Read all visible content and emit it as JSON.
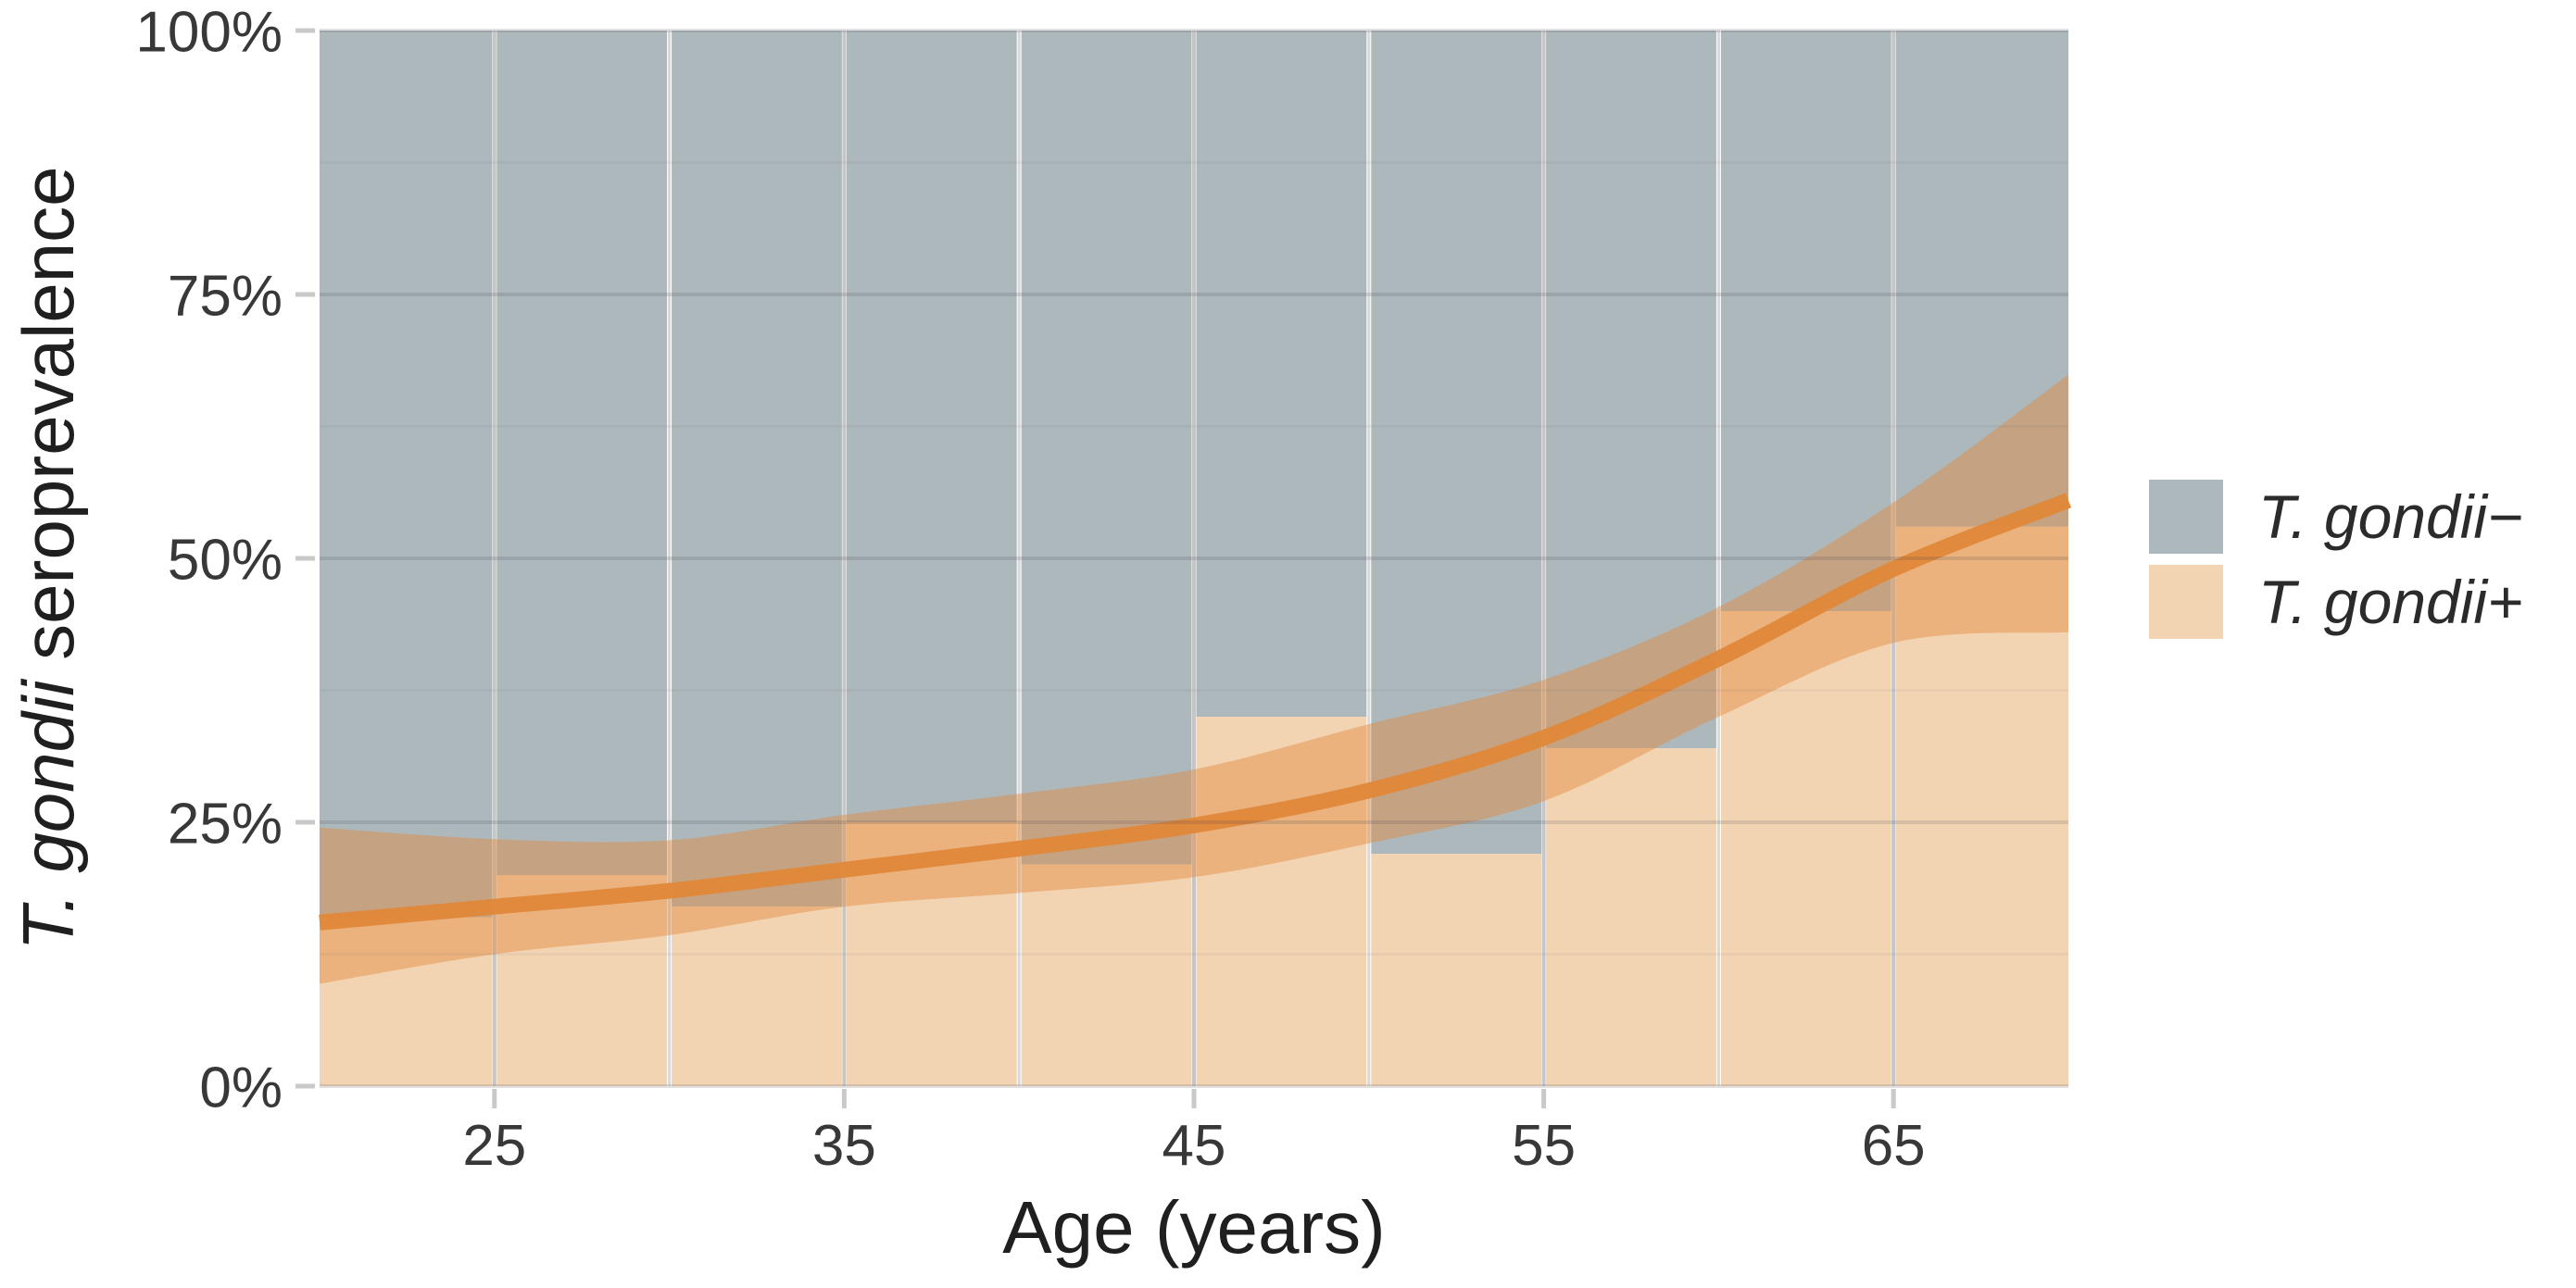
{
  "chart_data": {
    "type": "bar",
    "subtype": "stacked-percent-age-histogram-with-smoothed-trend-and-ci-ribbon",
    "title": "",
    "xlabel": "Age (years)",
    "ylabel_italic": "T. gondii",
    "ylabel_plain": " seroprevalence",
    "xlim": [
      20,
      70
    ],
    "ylim": [
      0,
      100
    ],
    "grid": "on",
    "legend_position": "right",
    "x_ticks": [
      {
        "value": 25,
        "label": "25"
      },
      {
        "value": 35,
        "label": "35"
      },
      {
        "value": 45,
        "label": "45"
      },
      {
        "value": 55,
        "label": "55"
      },
      {
        "value": 65,
        "label": "65"
      }
    ],
    "x_minor_gridlines": [
      30,
      40,
      50,
      60
    ],
    "y_ticks": [
      {
        "value": 0,
        "label": "0%"
      },
      {
        "value": 25,
        "label": "25%"
      },
      {
        "value": 50,
        "label": "50%"
      },
      {
        "value": 75,
        "label": "75%"
      },
      {
        "value": 100,
        "label": "100%"
      }
    ],
    "y_minor_gridlines": [
      12.5,
      37.5,
      62.5,
      87.5
    ],
    "bins": [
      {
        "age_start": 20,
        "age_end": 25,
        "positive_pct": 16,
        "negative_pct": 84
      },
      {
        "age_start": 25,
        "age_end": 30,
        "positive_pct": 20,
        "negative_pct": 80
      },
      {
        "age_start": 30,
        "age_end": 35,
        "positive_pct": 17,
        "negative_pct": 83
      },
      {
        "age_start": 35,
        "age_end": 40,
        "positive_pct": 25,
        "negative_pct": 75
      },
      {
        "age_start": 40,
        "age_end": 45,
        "positive_pct": 21,
        "negative_pct": 79
      },
      {
        "age_start": 45,
        "age_end": 50,
        "positive_pct": 35,
        "negative_pct": 65
      },
      {
        "age_start": 50,
        "age_end": 55,
        "positive_pct": 22,
        "negative_pct": 78
      },
      {
        "age_start": 55,
        "age_end": 60,
        "positive_pct": 32,
        "negative_pct": 68
      },
      {
        "age_start": 60,
        "age_end": 65,
        "positive_pct": 45,
        "negative_pct": 55
      },
      {
        "age_start": 65,
        "age_end": 70,
        "positive_pct": 53,
        "negative_pct": 47
      }
    ],
    "trend": {
      "x": [
        20,
        25,
        30,
        35,
        40,
        45,
        50,
        55,
        60,
        65,
        70
      ],
      "y": [
        15.5,
        17.0,
        18.5,
        20.5,
        22.5,
        24.7,
        28.0,
        33.0,
        40.5,
        49.0,
        55.5
      ]
    },
    "ribbon": {
      "x": [
        20,
        25,
        30,
        35,
        40,
        45,
        50,
        55,
        60,
        65,
        70
      ],
      "upper": [
        24.5,
        23.4,
        23.3,
        25.7,
        27.7,
        30.0,
        34.3,
        38.5,
        45.4,
        55.3,
        67.4
      ],
      "lower": [
        9.7,
        12.5,
        14.3,
        17.0,
        18.3,
        19.8,
        23.0,
        27.0,
        35.0,
        42.0,
        43.0
      ]
    },
    "legend": [
      {
        "label": "T. gondii−",
        "series": "negative",
        "color": "#adb8bc"
      },
      {
        "label": "T. gondii+",
        "series": "positive",
        "color": "#f2d4b3"
      }
    ],
    "colors": {
      "bar_negative": "#adb8bc",
      "bar_positive": "#f2d4b3",
      "ribbon": "rgba(227,138,60,0.45)",
      "trend": "#e0883b",
      "grid_major_under": "#c6c6c6",
      "grid_minor_under": "#d9d9d9",
      "grid_major_over": "rgba(60,64,74,0.16)",
      "grid_minor_over": "rgba(60,64,74,0.05)",
      "axis_tick": "#c9c9c9",
      "tick_label": "#383838",
      "title": "#1f1f1f"
    }
  }
}
